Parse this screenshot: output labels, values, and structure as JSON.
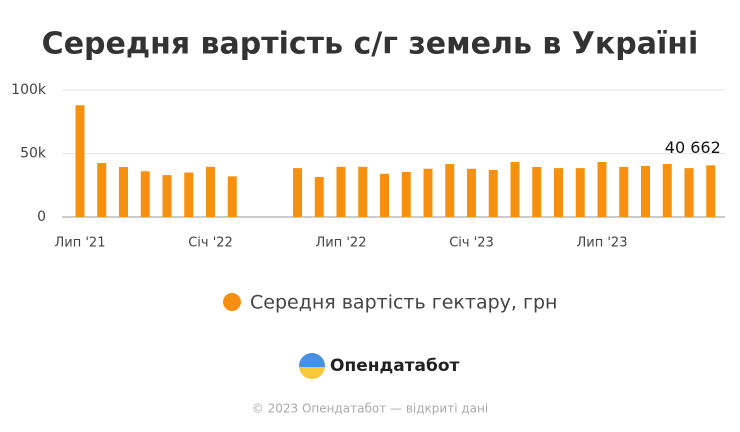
{
  "chart_data": {
    "type": "bar",
    "title": "Середня вартість с/г земель в Україні",
    "categories": [
      "Лип '21",
      null,
      null,
      null,
      null,
      null,
      "Січ '22",
      null,
      null,
      null,
      null,
      null,
      "Лип '22",
      null,
      null,
      null,
      null,
      null,
      "Січ '23",
      null,
      null,
      null,
      null,
      null,
      "Лип '23",
      null,
      null,
      null,
      null,
      null
    ],
    "series": [
      {
        "name": "Середня вартість гектару, грн",
        "color": "#f7900f",
        "values": [
          88000,
          42500,
          39400,
          36000,
          33000,
          35000,
          39500,
          32000,
          null,
          null,
          38500,
          31500,
          39500,
          39500,
          34000,
          35500,
          38000,
          41700,
          38000,
          37000,
          43300,
          39400,
          38500,
          38500,
          43300,
          39400,
          40200,
          41700,
          38500,
          40662
        ],
        "value_labels": [
          null,
          null,
          null,
          null,
          null,
          null,
          null,
          null,
          null,
          null,
          null,
          null,
          null,
          null,
          null,
          null,
          null,
          null,
          null,
          null,
          null,
          null,
          null,
          null,
          null,
          null,
          null,
          null,
          null,
          "40 662"
        ]
      }
    ],
    "ylim": [
      0,
      100000
    ],
    "yticks": [
      0,
      {
        "value": 50000,
        "label": "50k"
      },
      {
        "value": 100000,
        "label": "100k"
      }
    ],
    "grid": true
  },
  "footer": {
    "brand": "Опендатабот",
    "copyright": "© 2023 Опендатабот — відкриті дані"
  }
}
